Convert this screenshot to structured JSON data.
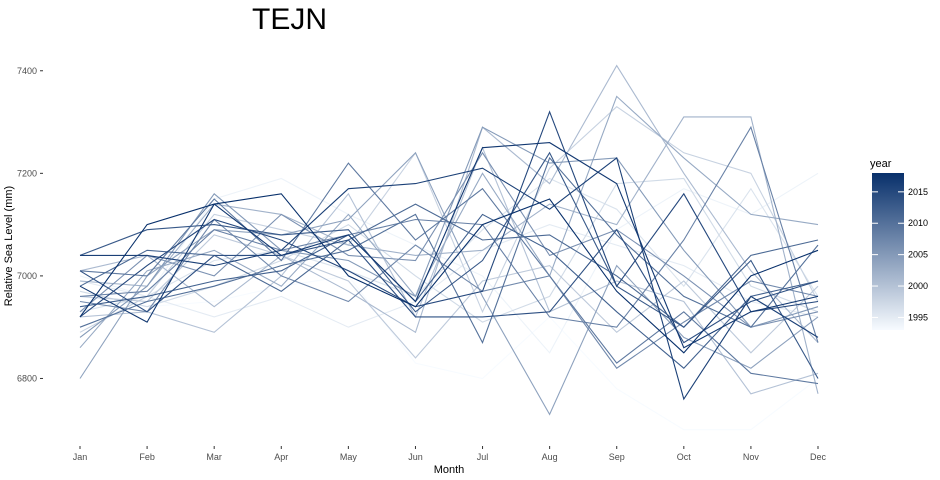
{
  "chart_data": {
    "type": "line",
    "title": "TEJN",
    "xlabel": "Month",
    "ylabel": "Relative Sea Level (mm)",
    "categories": [
      "Jan",
      "Feb",
      "Mar",
      "Apr",
      "May",
      "Jun",
      "Jul",
      "Aug",
      "Sep",
      "Oct",
      "Nov",
      "Dec"
    ],
    "ylim": [
      6680,
      7460
    ],
    "yticks": [
      6800,
      7000,
      7200,
      7400
    ],
    "ytick_labels": [
      "6800",
      "7000",
      "7200",
      "7400"
    ],
    "legend": {
      "title": "year",
      "placement": "right",
      "min_year": 1993,
      "max_year": 2018,
      "ticks": [
        1995,
        2000,
        2005,
        2010,
        2015
      ],
      "tick_labels": [
        "1995",
        "2000",
        "2005",
        "2010",
        "2015"
      ],
      "color_low": "#f7fbff",
      "color_high": "#08306b"
    },
    "series": [
      {
        "year": 1993,
        "values": [
          6960,
          6940,
          6950,
          6980,
          7000,
          6830,
          6800,
          6920,
          6780,
          6700,
          6700,
          6800
        ]
      },
      {
        "year": 1994,
        "values": [
          7000,
          6960,
          7150,
          7190,
          7120,
          7060,
          7000,
          6850,
          7090,
          7170,
          7120,
          7200
        ]
      },
      {
        "year": 1995,
        "values": [
          6990,
          6960,
          6920,
          6960,
          6900,
          6950,
          7050,
          7100,
          7060,
          7020,
          6950,
          6920
        ]
      },
      {
        "year": 1996,
        "values": [
          6930,
          6960,
          7030,
          7050,
          7010,
          6960,
          7090,
          7190,
          7130,
          6980,
          7170,
          6960
        ]
      },
      {
        "year": 1997,
        "values": [
          6970,
          6940,
          6980,
          7030,
          7100,
          7000,
          6910,
          6960,
          7180,
          7190,
          6980,
          6930
        ]
      },
      {
        "year": 1998,
        "values": [
          6890,
          6960,
          7120,
          7090,
          7060,
          7240,
          6930,
          7210,
          7330,
          7240,
          7200,
          6950
        ]
      },
      {
        "year": 1999,
        "values": [
          6960,
          6950,
          7080,
          7040,
          6990,
          6840,
          6990,
          7020,
          6890,
          6990,
          6850,
          6980
        ]
      },
      {
        "year": 2000,
        "values": [
          6920,
          6930,
          6890,
          7000,
          7160,
          6920,
          7250,
          6930,
          6990,
          6950,
          6770,
          6810
        ]
      },
      {
        "year": 2001,
        "values": [
          7010,
          7040,
          6940,
          7040,
          6970,
          6890,
          7290,
          7180,
          7410,
          7200,
          7010,
          6870
        ]
      },
      {
        "year": 2002,
        "values": [
          6990,
          6980,
          7140,
          7120,
          7060,
          7040,
          7050,
          7140,
          7100,
          7310,
          7310,
          6770
        ]
      },
      {
        "year": 2003,
        "values": [
          6860,
          7010,
          7050,
          6980,
          7120,
          6960,
          7200,
          7000,
          7350,
          7230,
          7120,
          7100
        ]
      },
      {
        "year": 2004,
        "values": [
          6800,
          7000,
          7090,
          7080,
          7110,
          7240,
          6960,
          6730,
          7020,
          6880,
          6820,
          6920
        ]
      },
      {
        "year": 2005,
        "values": [
          6880,
          6980,
          7160,
          7050,
          7030,
          6960,
          7290,
          7220,
          7230,
          7050,
          6900,
          6940
        ]
      },
      {
        "year": 2006,
        "values": [
          6930,
          7040,
          7000,
          7120,
          7040,
          7030,
          7240,
          7040,
          7090,
          7000,
          6900,
          6930
        ]
      },
      {
        "year": 2007,
        "values": [
          6950,
          6930,
          7110,
          7000,
          6950,
          7060,
          6970,
          7000,
          6820,
          6910,
          6990,
          6960
        ]
      },
      {
        "year": 2008,
        "values": [
          6960,
          6970,
          7090,
          7050,
          7080,
          7110,
          7100,
          6920,
          6900,
          7070,
          7290,
          6870
        ]
      },
      {
        "year": 2009,
        "values": [
          7010,
          7000,
          7150,
          7030,
          7220,
          7070,
          7170,
          7000,
          6830,
          6930,
          6810,
          6790
        ]
      },
      {
        "year": 2010,
        "values": [
          6900,
          6950,
          6980,
          7020,
          7050,
          7120,
          6870,
          7230,
          7080,
          6960,
          6900,
          7060
        ]
      },
      {
        "year": 2011,
        "values": [
          6980,
          7050,
          7040,
          6970,
          7070,
          7140,
          7070,
          7080,
          7000,
          6900,
          7040,
          7070
        ]
      },
      {
        "year": 2012,
        "values": [
          6940,
          6960,
          6990,
          7010,
          7080,
          6950,
          7120,
          7050,
          6930,
          6820,
          6960,
          6990
        ]
      },
      {
        "year": 2013,
        "values": [
          7040,
          7090,
          7100,
          7080,
          7090,
          6930,
          7030,
          7240,
          6980,
          6900,
          7030,
          6800
        ]
      },
      {
        "year": 2014,
        "values": [
          7010,
          6930,
          7040,
          7040,
          7070,
          6920,
          6920,
          6930,
          7090,
          6870,
          6950,
          6990
        ]
      },
      {
        "year": 2015,
        "values": [
          6920,
          7020,
          7110,
          7070,
          7010,
          6940,
          6970,
          7320,
          6980,
          7160,
          6930,
          6950
        ]
      },
      {
        "year": 2016,
        "values": [
          7040,
          7040,
          7020,
          7050,
          7170,
          7180,
          7210,
          7130,
          7230,
          6760,
          6960,
          6880
        ]
      },
      {
        "year": 2017,
        "values": [
          6980,
          6910,
          7140,
          7040,
          7080,
          6950,
          7250,
          7260,
          7180,
          6860,
          6930,
          6960
        ]
      },
      {
        "year": 2018,
        "values": [
          6920,
          7100,
          7140,
          7160,
          7000,
          6940,
          7100,
          7150,
          6970,
          6850,
          7000,
          7050
        ]
      }
    ]
  }
}
